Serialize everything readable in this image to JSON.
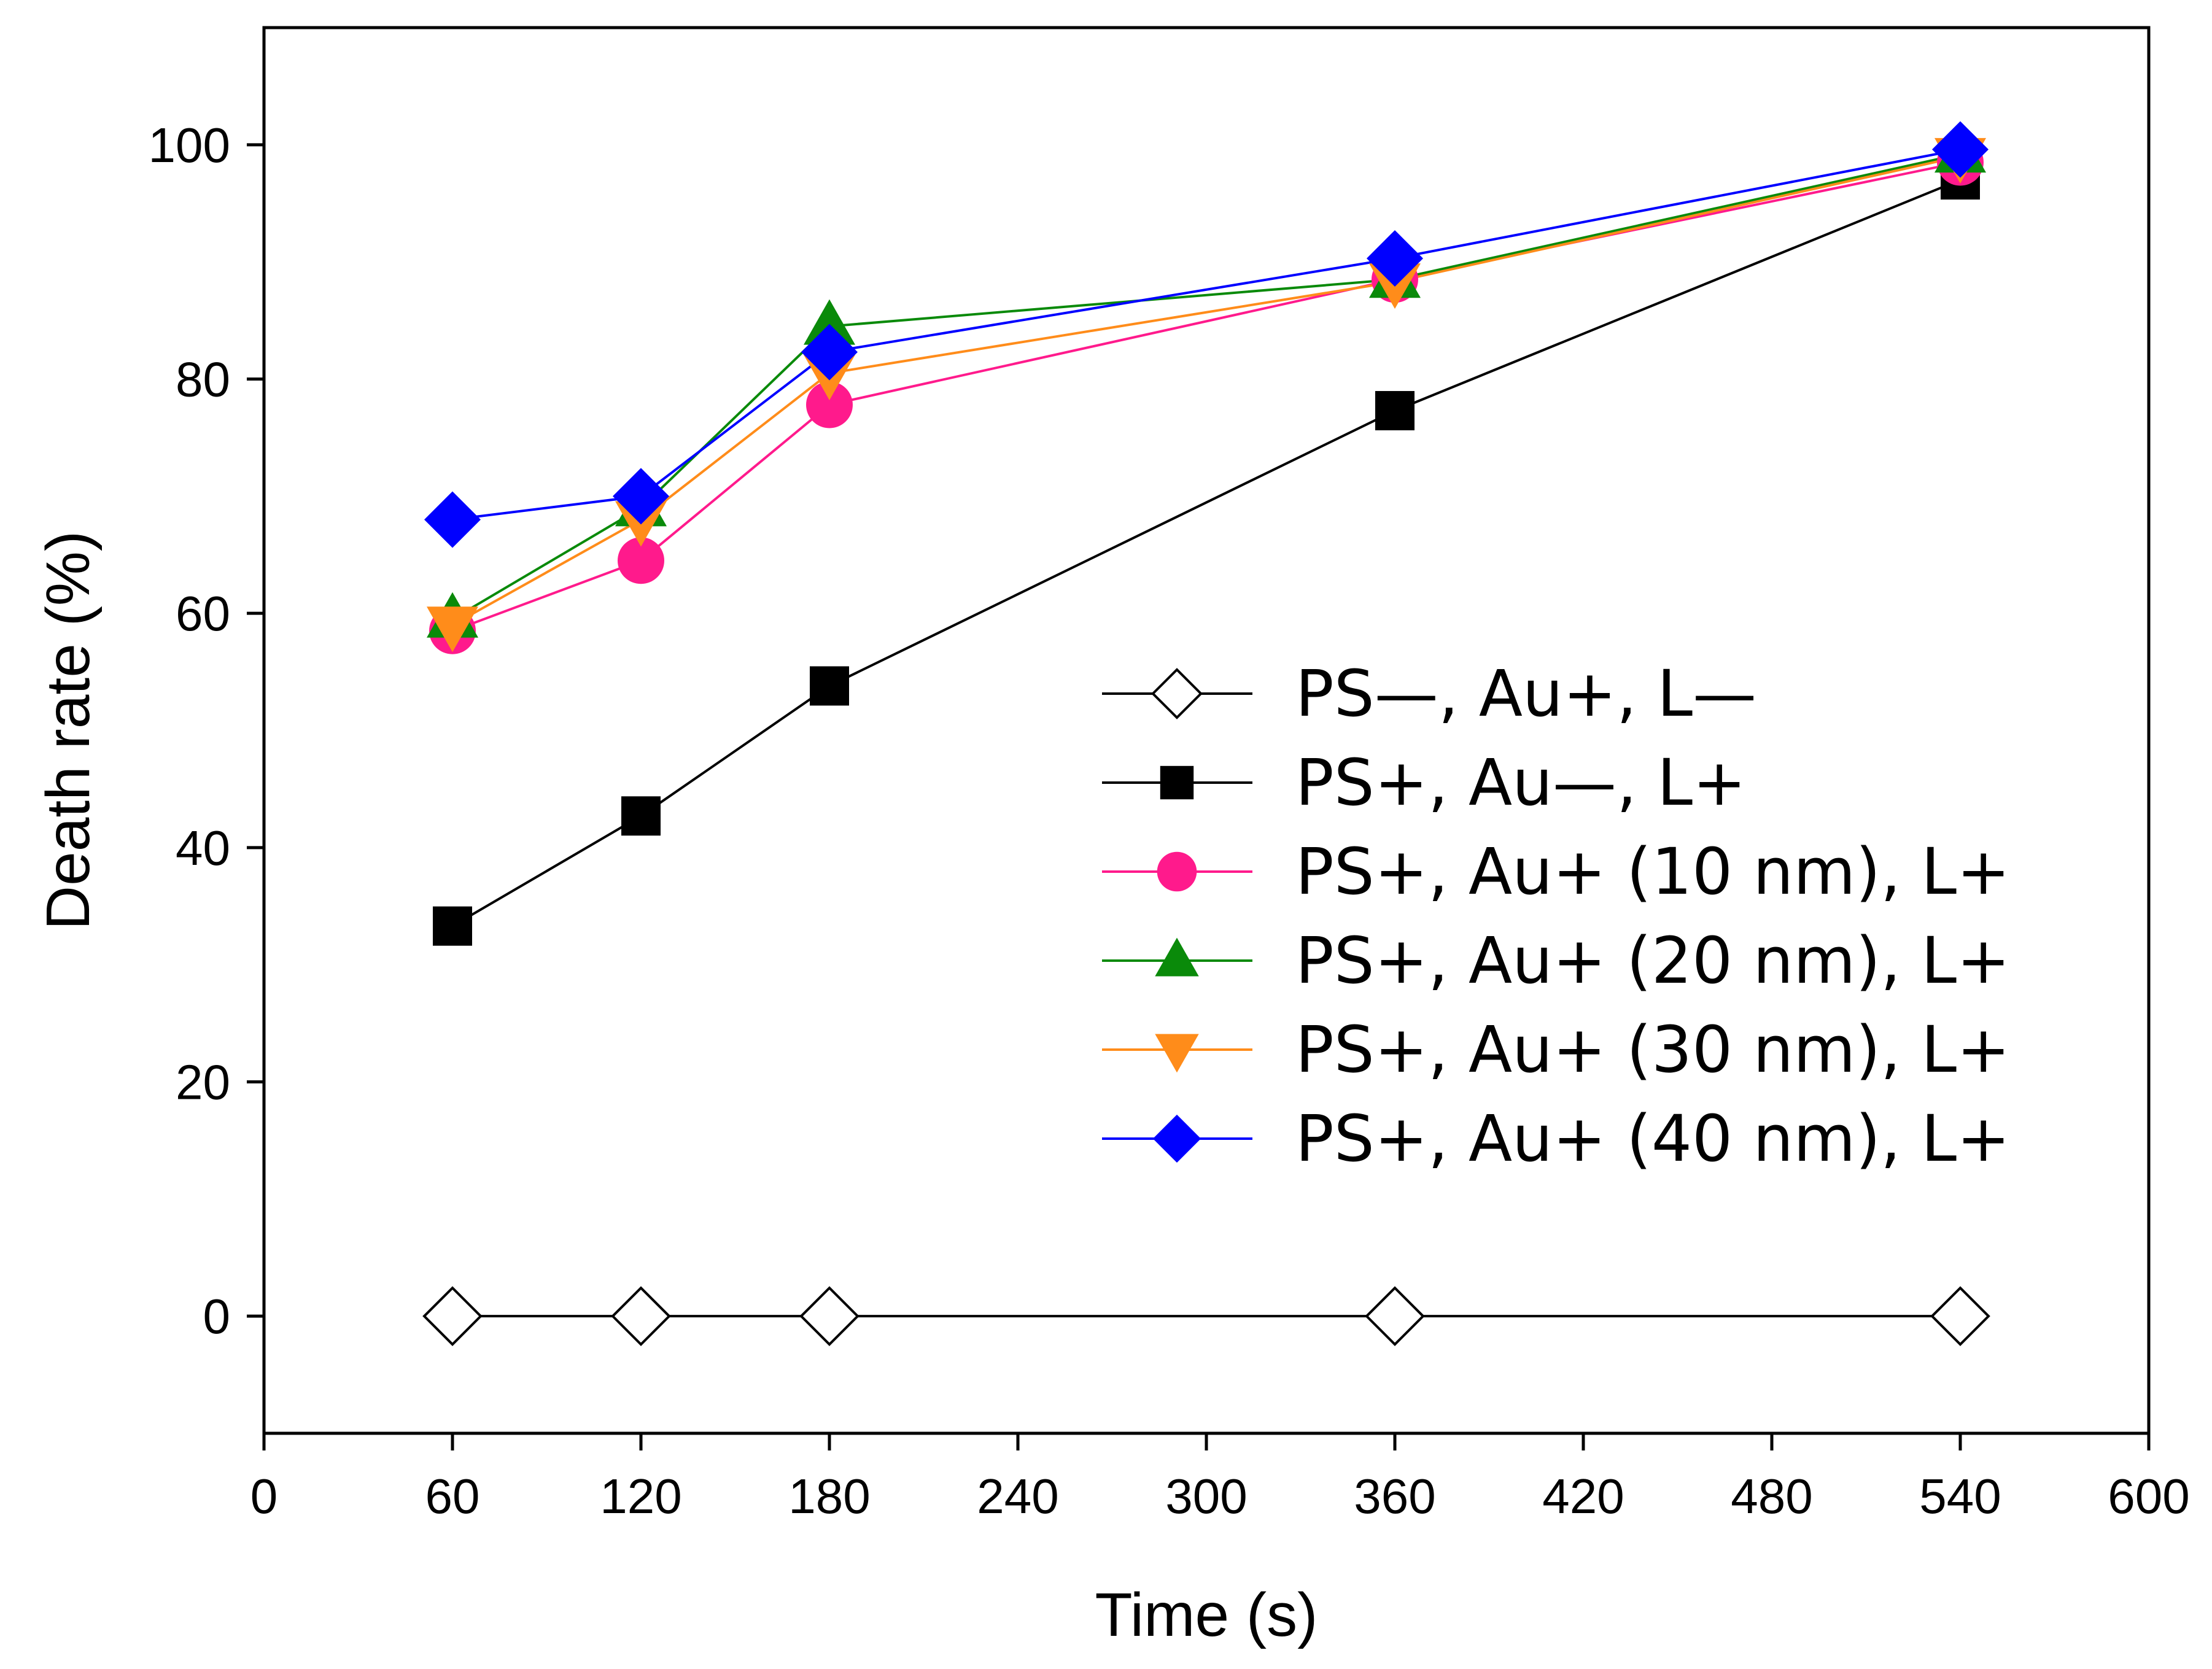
{
  "chart_data": {
    "type": "line",
    "xlabel": "Time (s)",
    "ylabel": "Death rate (%)",
    "xlim": [
      0,
      600
    ],
    "ylim": [
      -10,
      110
    ],
    "xticks": [
      0,
      60,
      120,
      180,
      240,
      300,
      360,
      420,
      480,
      540,
      600
    ],
    "yticks": [
      0,
      20,
      40,
      60,
      80,
      100
    ],
    "grid": false,
    "legend_position": "center-right",
    "x": [
      60,
      120,
      180,
      360,
      540
    ],
    "series": [
      {
        "name": "PS—, Au+,  L—",
        "color": "#000000",
        "marker": "diamond-open",
        "values": [
          0,
          0,
          0,
          0,
          0
        ]
      },
      {
        "name": "PS+, Au—,  L+",
        "color": "#000000",
        "marker": "square",
        "values": [
          33.3,
          42.7,
          53.8,
          77.3,
          97
        ]
      },
      {
        "name": "PS+, Au+ (10 nm),  L+",
        "color": "#ff1a8c",
        "marker": "circle",
        "values": [
          58.5,
          64.5,
          77.8,
          88.5,
          98.5
        ]
      },
      {
        "name": "PS+, Au+ (20 nm),  L+",
        "color": "#0a8a0a",
        "marker": "triangle-up",
        "values": [
          59.5,
          69,
          84.5,
          88.5,
          99.2
        ]
      },
      {
        "name": "PS+, Au+ (30 nm),  L+",
        "color": "#ff8c1a",
        "marker": "triangle-down",
        "values": [
          59,
          68,
          80.5,
          88.3,
          99
        ]
      },
      {
        "name": "PS+, Au+ (40 nm),  L+",
        "color": "#0000ff",
        "marker": "diamond",
        "values": [
          68,
          70,
          82.3,
          90.3,
          99.6
        ]
      }
    ]
  }
}
